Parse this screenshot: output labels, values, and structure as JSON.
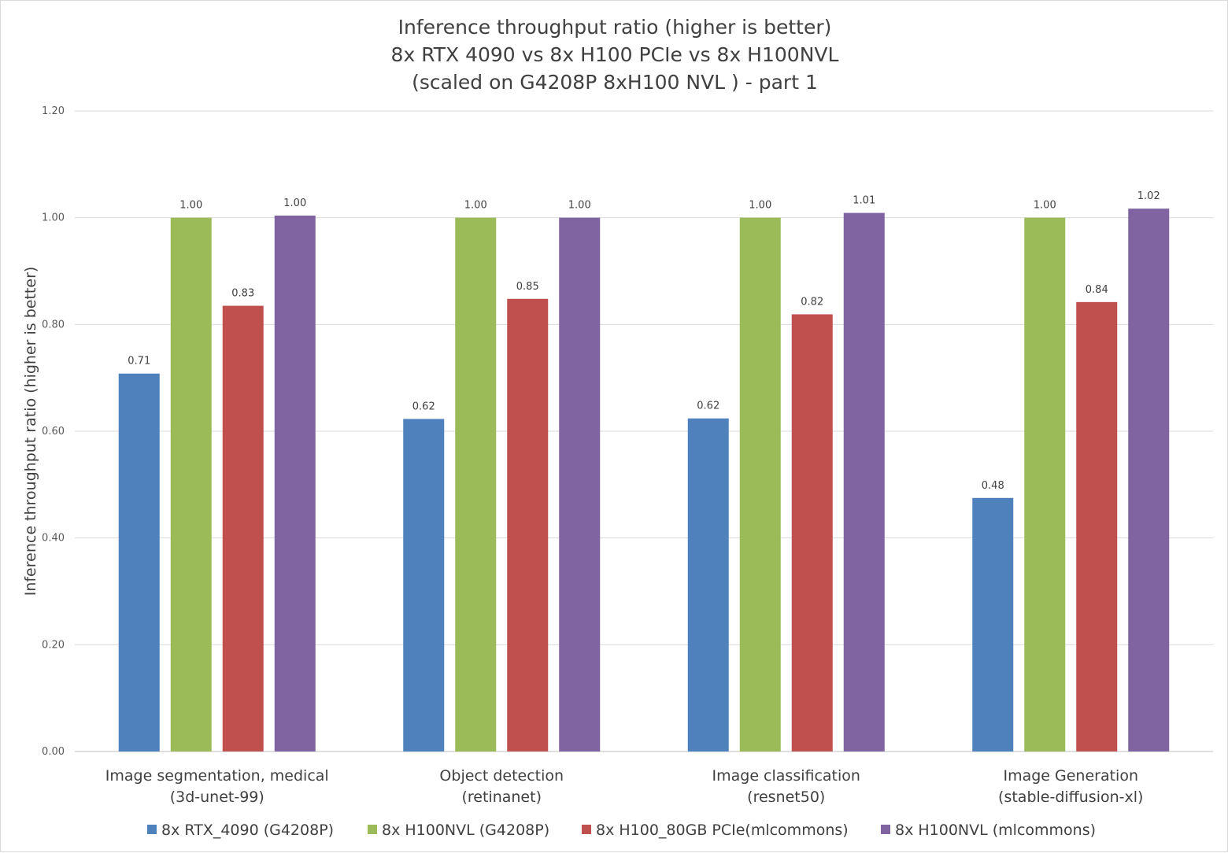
{
  "chart_data": {
    "type": "bar",
    "title": "Inference throughput ratio (higher is better)",
    "subtitle_lines": [
      "8x RTX 4090 vs 8x H100 PCIe vs 8x H100NVL",
      "(scaled on G4208P 8xH100 NVL ) - part 1"
    ],
    "ylabel": "Inference throughput ratio (higher is better)",
    "ylim": [
      0,
      1.2
    ],
    "yticks": [
      "0.00",
      "0.20",
      "0.40",
      "0.60",
      "0.80",
      "1.00",
      "1.20"
    ],
    "grid": true,
    "legend_position": "bottom",
    "categories": [
      [
        "Image segmentation, medical",
        "(3d-unet-99)"
      ],
      [
        "Object detection",
        "(retinanet)"
      ],
      [
        "Image classification",
        "(resnet50)"
      ],
      [
        "Image Generation",
        "(stable-diffusion-xl)"
      ]
    ],
    "series": [
      {
        "name": "8x RTX_4090 (G4208P)",
        "color": "#4f81bd",
        "values": [
          0.708,
          0.623,
          0.624,
          0.475
        ],
        "labels": [
          "0.71",
          "0.62",
          "0.62",
          "0.48"
        ]
      },
      {
        "name": "8x H100NVL (G4208P)",
        "color": "#9bbb59",
        "values": [
          1.0,
          1.0,
          1.0,
          1.0
        ],
        "labels": [
          "1.00",
          "1.00",
          "1.00",
          "1.00"
        ]
      },
      {
        "name": "8x H100_80GB PCIe(mlcommons)",
        "color": "#c0504d",
        "values": [
          0.835,
          0.848,
          0.819,
          0.842
        ],
        "labels": [
          "0.83",
          "0.85",
          "0.82",
          "0.84"
        ]
      },
      {
        "name": "8x H100NVL (mlcommons)",
        "color": "#8064a2",
        "values": [
          1.004,
          1.0,
          1.009,
          1.017
        ],
        "labels": [
          "1.00",
          "1.00",
          "1.01",
          "1.02"
        ]
      }
    ]
  }
}
